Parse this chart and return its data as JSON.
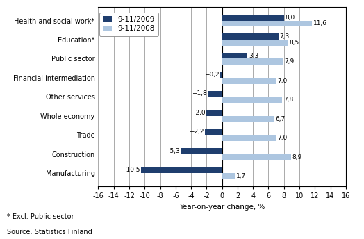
{
  "categories": [
    "Manufacturing",
    "Construction",
    "Trade",
    "Whole economy",
    "Other services",
    "Financial intermediation",
    "Public sector",
    "Education*",
    "Health and social work*"
  ],
  "values_2009": [
    -10.5,
    -5.3,
    -2.2,
    -2.0,
    -1.8,
    -0.2,
    3.3,
    7.3,
    8.0
  ],
  "values_2008": [
    1.7,
    8.9,
    7.0,
    6.7,
    7.8,
    7.0,
    7.9,
    8.5,
    11.6
  ],
  "color_2009": "#1F3E6E",
  "color_2008": "#ADC6E0",
  "legend_2009": "9-11/2009",
  "legend_2008": "9-11/2008",
  "xlabel": "Year-on-year change, %",
  "xlim": [
    -16,
    16
  ],
  "xticks": [
    -16,
    -14,
    -12,
    -10,
    -8,
    -6,
    -4,
    -2,
    0,
    2,
    4,
    6,
    8,
    10,
    12,
    14,
    16
  ],
  "footnote1": "* Excl. Public sector",
  "footnote2": "Source: Statistics Finland",
  "bar_height": 0.32,
  "label_fontsize": 6.5,
  "tick_fontsize": 7.0,
  "xlabel_fontsize": 7.5,
  "legend_fontsize": 7.5
}
